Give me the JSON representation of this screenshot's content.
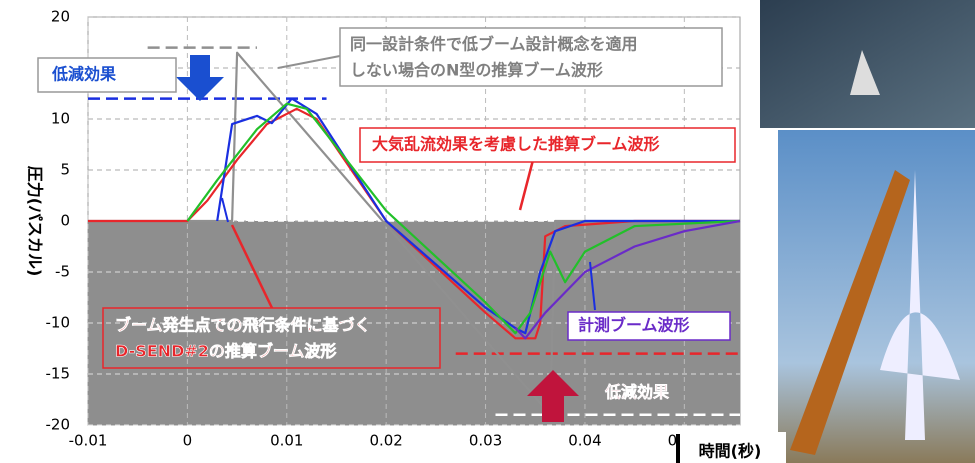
{
  "chart_data": {
    "type": "line",
    "xlabel": "時間(秒)",
    "ylabel": "圧力(パスカル)",
    "xlim": [
      -0.01,
      0.0556
    ],
    "ylim": [
      -20,
      20
    ],
    "xticks": [
      -0.01,
      0,
      0.01,
      0.02,
      0.03,
      0.04,
      0.05
    ],
    "yticks": [
      -20,
      -15,
      -10,
      -5,
      0,
      5,
      10,
      15,
      20
    ],
    "grid": true,
    "series": [
      {
        "color": "#909090",
        "x": [
          -0.01,
          0.0045,
          0.005,
          0.0365,
          0.037,
          0.0556
        ],
        "values": [
          0,
          0,
          16.5,
          -19,
          0,
          0
        ]
      },
      {
        "color": "#e8262b",
        "x": [
          -0.01,
          0,
          0.002,
          0.005,
          0.008,
          0.011,
          0.013,
          0.02,
          0.03,
          0.033,
          0.035,
          0.0355,
          0.036,
          0.038,
          0.045,
          0.0556
        ],
        "values": [
          0,
          0,
          2,
          6,
          9.5,
          11,
          10,
          0,
          -9,
          -11.5,
          -11.5,
          -10,
          -1.5,
          -0.5,
          0,
          0
        ]
      },
      {
        "color": "#1a2fe0",
        "x": [
          0.003,
          0.0045,
          0.007,
          0.0085,
          0.0105,
          0.013,
          0.02,
          0.03,
          0.033,
          0.034,
          0.0355,
          0.037,
          0.04,
          0.045,
          0.0556
        ],
        "values": [
          0,
          9.5,
          10.3,
          9.6,
          12,
          10.5,
          0,
          -8.5,
          -10.5,
          -11,
          -5,
          -1,
          0,
          0,
          0
        ]
      },
      {
        "color": "#22c02a",
        "x": [
          0,
          0.003,
          0.007,
          0.01,
          0.012,
          0.02,
          0.03,
          0.033,
          0.0345,
          0.0365,
          0.038,
          0.04,
          0.045,
          0.0556
        ],
        "values": [
          0,
          4,
          9,
          11.5,
          11,
          1,
          -8,
          -11,
          -9,
          -3,
          -6,
          -3,
          -0.5,
          0
        ]
      },
      {
        "color": "#6a2bc8",
        "x": [
          0.033,
          0.034,
          0.036,
          0.038,
          0.04,
          0.042,
          0.045,
          0.05,
          0.0556
        ],
        "values": [
          -10.5,
          -11.5,
          -9,
          -7,
          -5,
          -4,
          -2.5,
          -1,
          0
        ]
      }
    ],
    "reference_lines": [
      {
        "color": "#909090",
        "y": 17,
        "x": [
          -0.004,
          0.007
        ]
      },
      {
        "color": "#1a2fe0",
        "y": 12,
        "x": [
          -0.01,
          0.014
        ]
      },
      {
        "color": "#e8262b",
        "y": -13,
        "x": [
          0.027,
          0.0556
        ]
      },
      {
        "color": "#ffffff",
        "y": -19,
        "x": [
          0.031,
          0.0556
        ]
      }
    ],
    "annotations": [
      "同一設計条件で低ブーム設計概念を適用",
      "しない場合のN型の推算ブーム波形",
      "低減効果",
      "大気乱流効果を考慮した推算ブーム波形",
      "ブーム発生点での飛行条件に基づく",
      "D-SEND#2の推算ブーム波形",
      "計測ブーム波形",
      "低減効果"
    ]
  }
}
